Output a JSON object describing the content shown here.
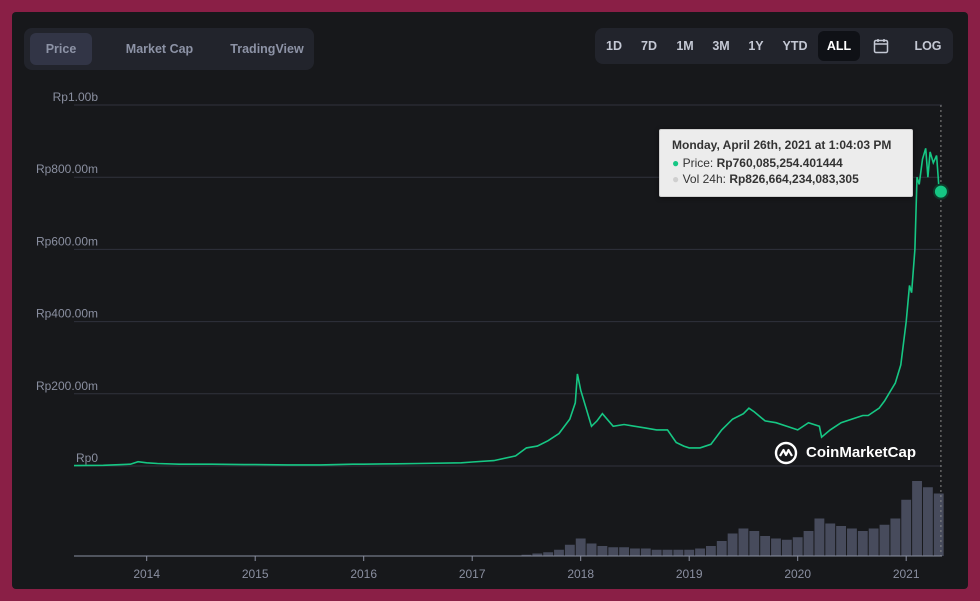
{
  "tabs": [
    {
      "label": "Price",
      "active": true
    },
    {
      "label": "Market Cap",
      "active": false
    },
    {
      "label": "TradingView",
      "active": false
    }
  ],
  "ranges": [
    {
      "label": "1D",
      "active": false
    },
    {
      "label": "7D",
      "active": false
    },
    {
      "label": "1M",
      "active": false
    },
    {
      "label": "3M",
      "active": false
    },
    {
      "label": "1Y",
      "active": false
    },
    {
      "label": "YTD",
      "active": false
    },
    {
      "label": "ALL",
      "active": true
    },
    {
      "icon": "calendar-icon",
      "active": false
    },
    {
      "label": "LOG",
      "active": false
    }
  ],
  "tooltip": {
    "title": "Monday, April 26th, 2021 at 1:04:03 PM",
    "price_label": "Price:",
    "price_value": "Rp760,085,254.401444",
    "vol_label": "Vol 24h:",
    "vol_value": "Rp826,664,234,083,305"
  },
  "brand": "CoinMarketCap",
  "colors": {
    "line": "#16c784",
    "volume": "#474b5c",
    "grid": "#30323c",
    "label": "#8a8fa0"
  },
  "chart_data": {
    "type": "line",
    "y_axis_labels": [
      "Rp1.00b",
      "Rp800.00m",
      "Rp600.00m",
      "Rp400.00m",
      "Rp200.00m",
      "Rp0"
    ],
    "y_ticks": [
      1000,
      800,
      600,
      400,
      200,
      0
    ],
    "ylim": [
      0,
      1000
    ],
    "y_unit": "million IDR",
    "x_axis_labels": [
      "2014",
      "2015",
      "2016",
      "2017",
      "2018",
      "2019",
      "2020",
      "2021"
    ],
    "x_ticks": [
      2014,
      2015,
      2016,
      2017,
      2018,
      2019,
      2020,
      2021
    ],
    "xlim": [
      2013.33,
      2021.33
    ],
    "grid": true,
    "series": [
      {
        "x": [
          2013.33,
          2013.6,
          2013.85,
          2013.92,
          2014.0,
          2014.1,
          2014.3,
          2014.6,
          2014.9,
          2015.0,
          2015.3,
          2015.6,
          2015.9,
          2016.0,
          2016.3,
          2016.5,
          2016.9,
          2017.0,
          2017.2,
          2017.4,
          2017.5,
          2017.6,
          2017.7,
          2017.8,
          2017.9,
          2017.95,
          2017.97,
          2018.0,
          2018.05,
          2018.1,
          2018.15,
          2018.2,
          2018.3,
          2018.4,
          2018.5,
          2018.6,
          2018.7,
          2018.8,
          2018.88,
          2018.95,
          2019.0,
          2019.1,
          2019.2,
          2019.3,
          2019.4,
          2019.5,
          2019.55,
          2019.6,
          2019.7,
          2019.8,
          2019.9,
          2020.0,
          2020.1,
          2020.2,
          2020.22,
          2020.3,
          2020.4,
          2020.5,
          2020.6,
          2020.65,
          2020.75,
          2020.8,
          2020.9,
          2020.95,
          2021.0,
          2021.03,
          2021.05,
          2021.08,
          2021.1,
          2021.12,
          2021.15,
          2021.18,
          2021.2,
          2021.22,
          2021.25,
          2021.28,
          2021.3,
          2021.32
        ],
        "y": [
          1,
          2,
          5,
          12,
          9,
          7,
          5,
          5,
          4,
          4,
          3,
          3,
          5,
          5,
          6,
          7,
          9,
          11,
          15,
          28,
          50,
          55,
          70,
          90,
          130,
          175,
          255,
          210,
          160,
          110,
          125,
          145,
          110,
          115,
          110,
          105,
          100,
          100,
          65,
          55,
          50,
          50,
          60,
          100,
          130,
          145,
          160,
          150,
          125,
          120,
          110,
          100,
          120,
          110,
          80,
          100,
          120,
          130,
          140,
          140,
          160,
          180,
          230,
          280,
          400,
          500,
          480,
          600,
          800,
          780,
          850,
          880,
          800,
          870,
          840,
          860,
          780,
          760
        ]
      }
    ],
    "volume": {
      "x": [
        2017.5,
        2017.6,
        2017.7,
        2017.8,
        2017.9,
        2018.0,
        2018.1,
        2018.2,
        2018.3,
        2018.4,
        2018.5,
        2018.6,
        2018.7,
        2018.8,
        2018.9,
        2019.0,
        2019.1,
        2019.2,
        2019.3,
        2019.4,
        2019.5,
        2019.6,
        2019.7,
        2019.8,
        2019.9,
        2020.0,
        2020.1,
        2020.2,
        2020.3,
        2020.4,
        2020.5,
        2020.6,
        2020.7,
        2020.8,
        2020.9,
        2021.0,
        2021.1,
        2021.2,
        2021.3
      ],
      "y": [
        1,
        2,
        3,
        5,
        9,
        14,
        10,
        8,
        7,
        7,
        6,
        6,
        5,
        5,
        5,
        5,
        6,
        8,
        12,
        18,
        22,
        20,
        16,
        14,
        13,
        15,
        20,
        30,
        26,
        24,
        22,
        20,
        22,
        25,
        30,
        45,
        60,
        55,
        50
      ]
    },
    "hover_point": {
      "x": 2021.32,
      "y": 760.085
    }
  }
}
